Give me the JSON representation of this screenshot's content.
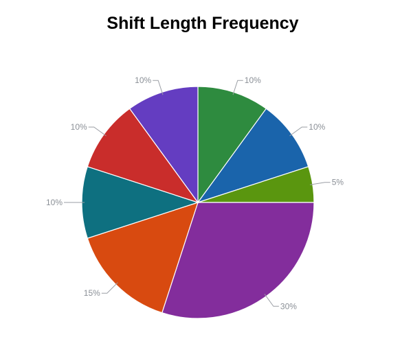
{
  "chart_data": {
    "type": "pie",
    "title": "Shift Length Frequency",
    "slices": [
      {
        "value": 10,
        "label": "10%",
        "color": "#2e8b3f"
      },
      {
        "value": 10,
        "label": "10%",
        "color": "#1a64ab"
      },
      {
        "value": 5,
        "label": "5%",
        "color": "#5a960f"
      },
      {
        "value": 30,
        "label": "30%",
        "color": "#832d9c"
      },
      {
        "value": 15,
        "label": "15%",
        "color": "#d84a10"
      },
      {
        "value": 10,
        "label": "10%",
        "color": "#0e7080"
      },
      {
        "value": 10,
        "label": "10%",
        "color": "#c92d2b"
      },
      {
        "value": 10,
        "label": "10%",
        "color": "#643dc1"
      }
    ],
    "legend": "none",
    "start_angle": "12 o'clock, clockwise"
  }
}
